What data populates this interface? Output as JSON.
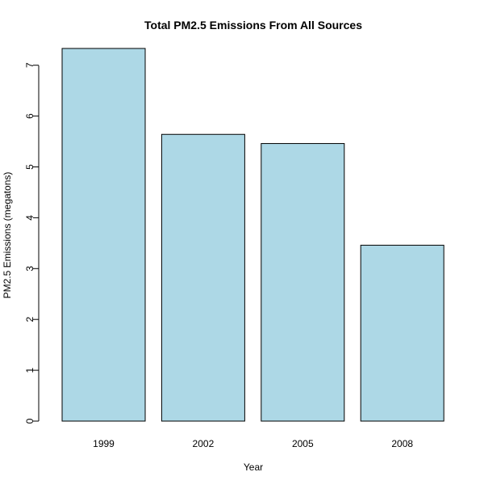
{
  "chart_data": {
    "type": "bar",
    "title": "Total PM2.5 Emissions From All Sources",
    "xlabel": "Year",
    "ylabel": "PM2.5 Emissions (megatons)",
    "categories": [
      "1999",
      "2002",
      "2005",
      "2008"
    ],
    "values": [
      7.33,
      5.64,
      5.46,
      3.46
    ],
    "ylim": [
      0,
      7.33
    ],
    "yticks": [
      0,
      1,
      2,
      3,
      4,
      5,
      6,
      7
    ],
    "grid": false,
    "legend": "none",
    "bar_color": "#add8e6",
    "bar_border_color": "#000000"
  }
}
